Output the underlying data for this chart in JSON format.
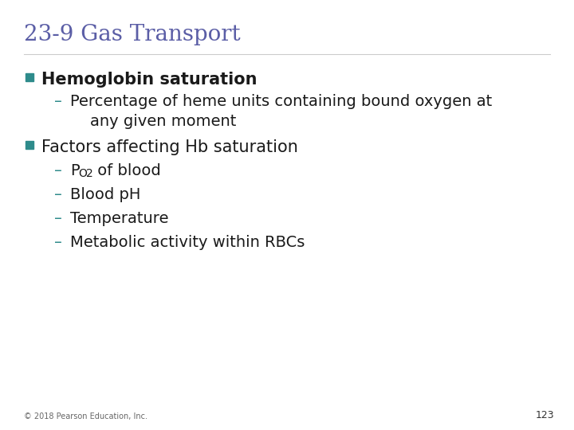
{
  "title": "23-9 Gas Transport",
  "title_color": "#5B5EA6",
  "title_fontsize": 20,
  "background_color": "#FFFFFF",
  "bullet_color": "#2E8B8B",
  "text_color": "#1A1A1A",
  "dash_color": "#2E8B8B",
  "footer_text": "© 2018 Pearson Education, Inc.",
  "page_number": "123",
  "main_fontsize": 15,
  "sub_fontsize": 14,
  "title_font": "serif"
}
